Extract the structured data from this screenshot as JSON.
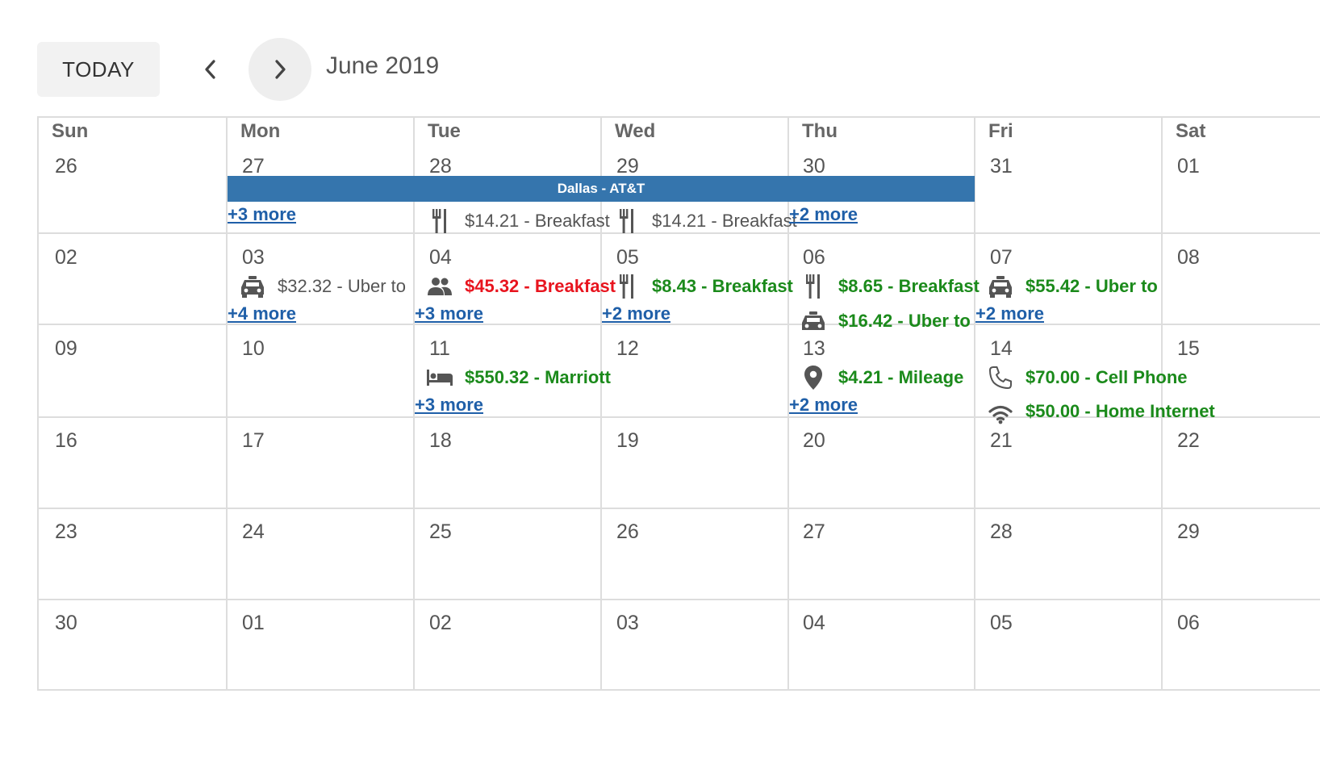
{
  "toolbar": {
    "today_label": "TODAY",
    "prev_icon": "chevron-left-icon",
    "next_icon": "chevron-right-icon",
    "month_label": "June 2019"
  },
  "weekdays": [
    "Sun",
    "Mon",
    "Tue",
    "Wed",
    "Thu",
    "Fri",
    "Sat"
  ],
  "weeks": [
    [
      "26",
      "27",
      "28",
      "29",
      "30",
      "31",
      "01"
    ],
    [
      "02",
      "03",
      "04",
      "05",
      "06",
      "07",
      "08"
    ],
    [
      "09",
      "10",
      "11",
      "12",
      "13",
      "14",
      "15"
    ],
    [
      "16",
      "17",
      "18",
      "19",
      "20",
      "21",
      "22"
    ],
    [
      "23",
      "24",
      "25",
      "26",
      "27",
      "28",
      "29"
    ],
    [
      "30",
      "01",
      "02",
      "03",
      "04",
      "05",
      "06"
    ]
  ],
  "banner": {
    "label": "Dallas - AT&T",
    "color": "#3575ad"
  },
  "events": {
    "w0_tue": {
      "icon": "fork-knife-icon",
      "text": "$14.21 - Breakfast"
    },
    "w0_wed": {
      "icon": "fork-knife-icon",
      "text": "$14.21 - Breakfast"
    },
    "w1_mon": {
      "icon": "taxi-icon",
      "text": "$32.32 - Uber to"
    },
    "w1_tue": {
      "icon": "people-icon",
      "text": "$45.32 - Breakfast"
    },
    "w1_wed": {
      "icon": "fork-knife-icon",
      "text": "$8.43 - Breakfast"
    },
    "w1_thu": {
      "icon": "fork-knife-icon",
      "text": "$8.65 - Breakfast"
    },
    "w1_thu_2": {
      "icon": "taxi-icon",
      "text": "$16.42 - Uber to"
    },
    "w1_fri": {
      "icon": "taxi-icon",
      "text": "$55.42 - Uber to"
    },
    "w2_tue": {
      "icon": "bed-icon",
      "text": "$550.32 - Marriott"
    },
    "w2_thu": {
      "icon": "map-pin-icon",
      "text": "$4.21 - Mileage"
    },
    "w2_fri": {
      "icon": "phone-icon",
      "text": "$70.00 - Cell Phone"
    },
    "w2_fri_2": {
      "icon": "wifi-icon",
      "text": "$50.00 - Home Internet"
    }
  },
  "more": {
    "w0_mon": "+3 more",
    "w0_thu": "+2 more",
    "w1_mon": "+4 more",
    "w1_tue": "+3 more",
    "w1_wed": "+2 more",
    "w1_fri": "+2 more",
    "w2_tue": "+3 more",
    "w2_thu": "+2 more"
  },
  "colors": {
    "paid": "#1b8a1b",
    "over_limit": "#e8141e",
    "pending": "#555555",
    "link": "#1f5fa8",
    "grid": "#dddddd"
  }
}
